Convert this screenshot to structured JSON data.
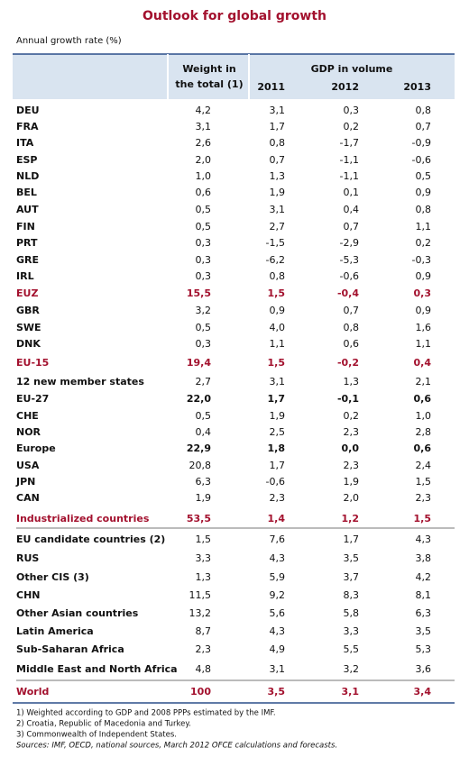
{
  "header": {
    "title": "Outlook for global growth",
    "subtitle": "Annual growth rate (%)"
  },
  "table": {
    "columns": {
      "weight": "Weight in the total (1)",
      "group": "GDP in volume",
      "years": [
        "2011",
        "2012",
        "2013"
      ]
    },
    "rows": [
      [
        "DEU",
        "4,2",
        "3,1",
        "0,3",
        "0,8"
      ],
      [
        "FRA",
        "3,1",
        "1,7",
        "0,2",
        "0,7"
      ],
      [
        "ITA",
        "2,6",
        "0,8",
        "-1,7",
        "-0,9"
      ],
      [
        "ESP",
        "2,0",
        "0,7",
        "-1,1",
        "-0,6"
      ],
      [
        "NLD",
        "1,0",
        "1,3",
        "-1,1",
        "0,5"
      ],
      [
        "BEL",
        "0,6",
        "1,9",
        "0,1",
        "0,9"
      ],
      [
        "AUT",
        "0,5",
        "3,1",
        "0,4",
        "0,8"
      ],
      [
        "FIN",
        "0,5",
        "2,7",
        "0,7",
        "1,1"
      ],
      [
        "PRT",
        "0,3",
        "-1,5",
        "-2,9",
        "0,2"
      ],
      [
        "GRE",
        "0,3",
        "-6,2",
        "-5,3",
        "-0,3"
      ],
      [
        "IRL",
        "0,3",
        "0,8",
        "-0,6",
        "0,9"
      ],
      [
        "EUZ",
        "15,5",
        "1,5",
        "-0,4",
        "0,3"
      ],
      [
        "GBR",
        "3,2",
        "0,9",
        "0,7",
        "0,9"
      ],
      [
        "SWE",
        "0,5",
        "4,0",
        "0,8",
        "1,6"
      ],
      [
        "DNK",
        "0,3",
        "1,1",
        "0,6",
        "1,1"
      ],
      [
        "EU-15",
        "19,4",
        "1,5",
        "-0,2",
        "0,4"
      ],
      [
        "12 new member states",
        "2,7",
        "3,1",
        "1,3",
        "2,1"
      ],
      [
        "EU-27",
        "22,0",
        "1,7",
        "-0,1",
        "0,6"
      ],
      [
        "CHE",
        "0,5",
        "1,9",
        "0,2",
        "1,0"
      ],
      [
        "NOR",
        "0,4",
        "2,5",
        "2,3",
        "2,8"
      ],
      [
        "Europe",
        "22,9",
        "1,8",
        "0,0",
        "0,6"
      ],
      [
        "USA",
        "20,8",
        "1,7",
        "2,3",
        "2,4"
      ],
      [
        "JPN",
        "6,3",
        "-0,6",
        "1,9",
        "1,5"
      ],
      [
        "CAN",
        "1,9",
        "2,3",
        "2,0",
        "2,3"
      ],
      [
        "Industrialized countries",
        "53,5",
        "1,4",
        "1,2",
        "1,5"
      ],
      [
        "EU candidate countries (2)",
        "1,5",
        "7,6",
        "1,7",
        "4,3"
      ],
      [
        "RUS",
        "3,3",
        "4,3",
        "3,5",
        "3,8"
      ],
      [
        "Other CIS (3)",
        "1,3",
        "5,9",
        "3,7",
        "4,2"
      ],
      [
        "CHN",
        "11,5",
        "9,2",
        "8,3",
        "8,1"
      ],
      [
        "Other Asian countries",
        "13,2",
        "5,6",
        "5,8",
        "6,3"
      ],
      [
        "Latin America",
        "8,7",
        "4,3",
        "3,3",
        "3,5"
      ],
      [
        "Sub-Saharan Africa",
        "2,3",
        "4,9",
        "5,5",
        "5,3"
      ],
      [
        "Middle East and North Africa",
        "4,8",
        "3,1",
        "3,2",
        "3,6"
      ],
      [
        "World",
        "100",
        "3,5",
        "3,1",
        "3,4"
      ]
    ]
  },
  "footnotes": [
    "1) Weighted according to GDP and 2008 PPPs estimated by the IMF.",
    "2) Croatia, Republic of Macedonia and Turkey.",
    "3) Commonwealth of Independent States.",
    "Sources: IMF, OECD, national sources, March 2012 OFCE calculations and forecasts."
  ]
}
